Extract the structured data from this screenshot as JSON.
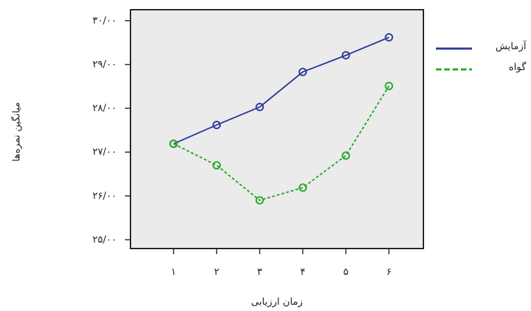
{
  "chart_data": {
    "type": "line",
    "y_label": "میانگین نمره‌ها",
    "x_label": "زمان ارزیابی",
    "x": [
      1,
      2,
      3,
      4,
      5,
      6
    ],
    "xlim": [
      0,
      6.8
    ],
    "xticks": [
      {
        "value": 1,
        "label": "۱"
      },
      {
        "value": 2,
        "label": "۲"
      },
      {
        "value": 3,
        "label": "۳"
      },
      {
        "value": 4,
        "label": "۴"
      },
      {
        "value": 5,
        "label": "۵"
      },
      {
        "value": 6,
        "label": "۶"
      }
    ],
    "ylim": [
      24.8,
      30.25
    ],
    "yticks": [
      {
        "value": 25,
        "label": "۲۵/۰۰"
      },
      {
        "value": 26,
        "label": "۲۶/۰۰"
      },
      {
        "value": 27,
        "label": "۲۷/۰۰"
      },
      {
        "value": 28,
        "label": "۲۸/۰۰"
      },
      {
        "value": 29,
        "label": "۲۹/۰۰"
      },
      {
        "value": 30,
        "label": "۳۰/۰۰"
      }
    ],
    "series": [
      {
        "name": "آزمایش",
        "color": "#2b3a9a",
        "dash": false,
        "values": [
          27.19,
          27.62,
          28.03,
          28.83,
          29.21,
          29.62
        ]
      },
      {
        "name": "گواه",
        "color": "#22aa22",
        "dash": true,
        "values": [
          27.19,
          26.7,
          25.9,
          26.19,
          26.92,
          28.51
        ]
      }
    ]
  }
}
